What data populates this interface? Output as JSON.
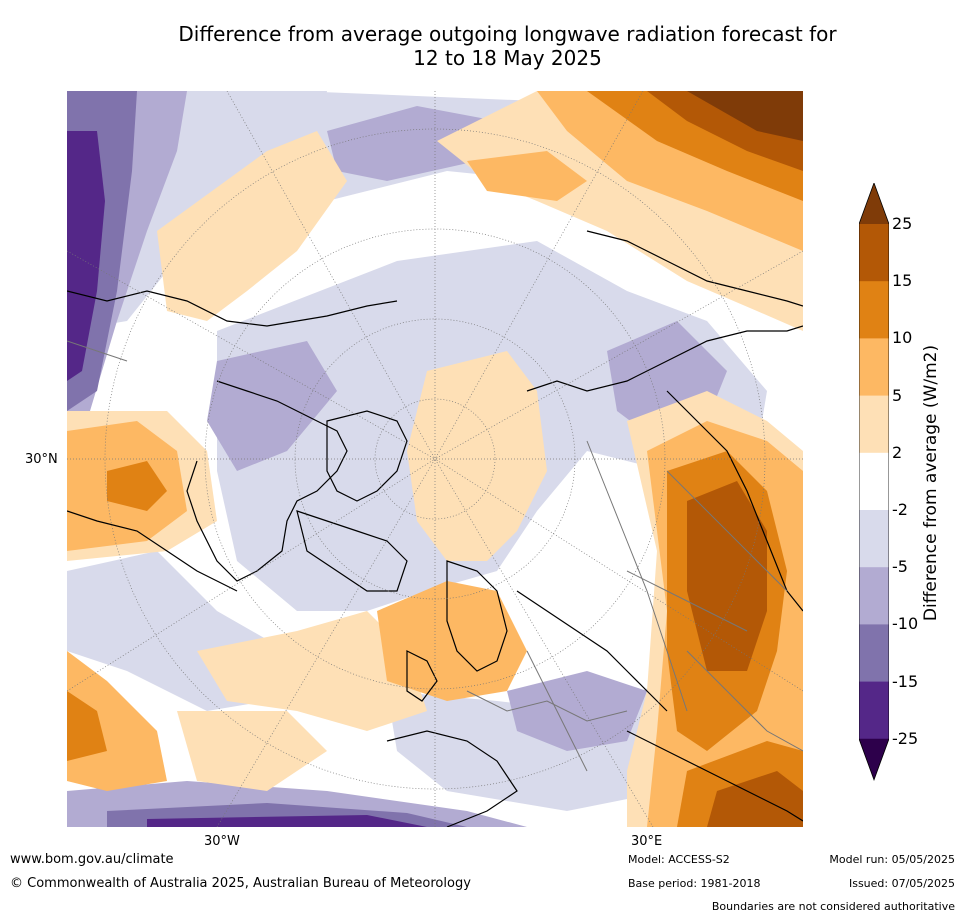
{
  "title": {
    "line1": "Difference from average outgoing longwave radiation forecast for",
    "line2": "12 to 18 May 2025"
  },
  "axes": {
    "lon_labels": [
      "30°W",
      "30°E"
    ],
    "lat_labels": [
      "30°N"
    ]
  },
  "colorbar": {
    "label": "Difference from average (W/m2)",
    "ticks": [
      "25",
      "15",
      "10",
      "5",
      "2",
      "-2",
      "-5",
      "-10",
      "-15",
      "-25"
    ],
    "colors": [
      "#7f3b08",
      "#b35806",
      "#e08214",
      "#fdb863",
      "#fee0b6",
      "#ffffff",
      "#d8daeb",
      "#b2abd2",
      "#8073ac",
      "#542788",
      "#2d004b"
    ]
  },
  "footer": {
    "website": "www.bom.gov.au/climate",
    "copyright": "© Commonwealth of Australia 2025, Australian Bureau of Meteorology",
    "model": "Model: ACCESS-S2",
    "base_period": "Base period: 1981-2018",
    "model_run": "Model run: 05/05/2025",
    "issued": "Issued: 07/05/2025",
    "disclaimer": "Boundaries are not considered authoritative"
  }
}
